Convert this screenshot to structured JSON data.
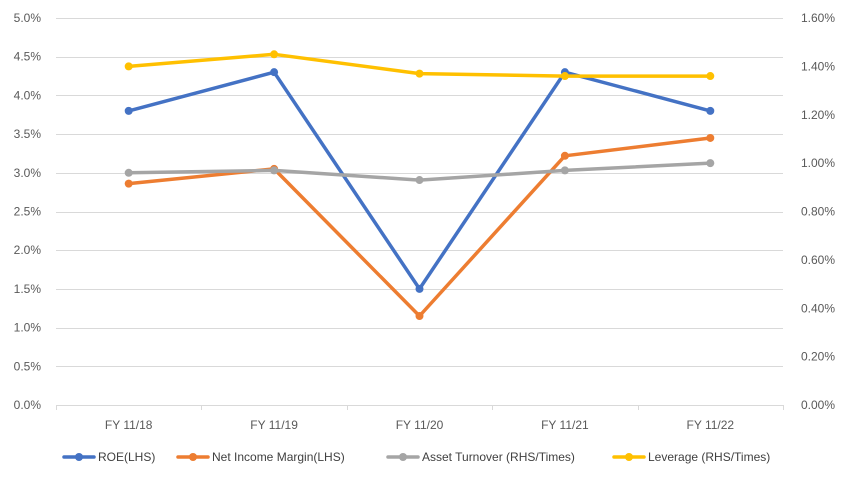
{
  "chart_data": {
    "type": "line",
    "categories": [
      "FY 11/18",
      "FY 11/19",
      "FY 11/20",
      "FY 11/21",
      "FY 11/22"
    ],
    "y_left": {
      "ylim": [
        0,
        5.0
      ],
      "ticks": [
        0,
        0.5,
        1.0,
        1.5,
        2.0,
        2.5,
        3.0,
        3.5,
        4.0,
        4.5,
        5.0
      ],
      "tick_labels": [
        "0.0%",
        "0.5%",
        "1.0%",
        "1.5%",
        "2.0%",
        "2.5%",
        "3.0%",
        "3.5%",
        "4.0%",
        "4.5%",
        "5.0%"
      ]
    },
    "y_right": {
      "ylim": [
        0,
        1.6
      ],
      "ticks": [
        0,
        0.2,
        0.4,
        0.6,
        0.8,
        1.0,
        1.2,
        1.4,
        1.6
      ],
      "tick_labels": [
        "0.00%",
        "0.20%",
        "0.40%",
        "0.60%",
        "0.80%",
        "1.00%",
        "1.20%",
        "1.40%",
        "1.60%"
      ]
    },
    "grid": true,
    "legend_position": "bottom",
    "series": [
      {
        "name": "ROE(LHS)",
        "axis": "left",
        "color": "#4472C4",
        "values": [
          3.8,
          4.3,
          1.5,
          4.3,
          3.8
        ]
      },
      {
        "name": "Net Income Margin(LHS)",
        "axis": "left",
        "color": "#ED7D31",
        "values": [
          2.86,
          3.05,
          1.15,
          3.22,
          3.45
        ]
      },
      {
        "name": "Asset Turnover (RHS/Times)",
        "axis": "right",
        "color": "#A5A5A5",
        "values": [
          0.96,
          0.97,
          0.93,
          0.97,
          1.0
        ]
      },
      {
        "name": "Leverage (RHS/Times)",
        "axis": "right",
        "color": "#FFC000",
        "values": [
          1.4,
          1.45,
          1.37,
          1.36,
          1.36
        ]
      }
    ]
  }
}
